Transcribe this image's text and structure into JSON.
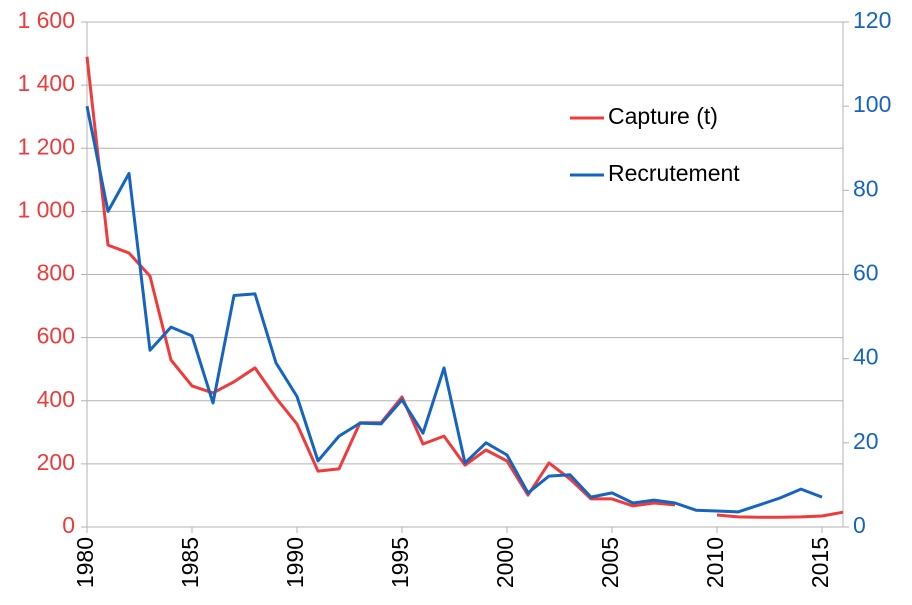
{
  "chart_data": {
    "type": "line",
    "x": [
      1980,
      1981,
      1982,
      1983,
      1984,
      1985,
      1986,
      1987,
      1988,
      1989,
      1990,
      1991,
      1992,
      1993,
      1994,
      1995,
      1996,
      1997,
      1998,
      1999,
      2000,
      2001,
      2002,
      2003,
      2004,
      2005,
      2006,
      2007,
      2008,
      2009,
      2010,
      2011,
      2012,
      2013,
      2014,
      2015,
      2016
    ],
    "series": [
      {
        "name": "Capture (t)",
        "color": "#ee3b3b",
        "axis": "y",
        "values": [
          1490,
          893,
          868,
          795,
          529,
          447,
          425,
          460,
          504,
          409,
          326,
          177,
          184,
          330,
          330,
          412,
          263,
          288,
          196,
          244,
          209,
          101,
          203,
          152,
          89,
          89,
          67,
          76,
          70,
          null,
          38,
          32,
          31,
          31,
          32,
          35,
          47
        ]
      },
      {
        "name": "Recrutement",
        "color": "#1565c0",
        "axis": "y2",
        "values": [
          100,
          75,
          84,
          42,
          47.5,
          45.4,
          29.5,
          55,
          55.4,
          39,
          31,
          15.7,
          21.6,
          24.7,
          24.5,
          30.2,
          22.3,
          37.8,
          15.2,
          20,
          17.1,
          8.1,
          12.1,
          12.4,
          7.1,
          8.1,
          5.7,
          6.4,
          5.7,
          4,
          3.8,
          3.6,
          5.2,
          6.9,
          9,
          7.1,
          null
        ]
      }
    ],
    "xlim": [
      1980,
      2016
    ],
    "xticks": [
      1980,
      1985,
      1990,
      1995,
      2000,
      2005,
      2010,
      2015
    ],
    "ylim": [
      0,
      1600
    ],
    "yticks": [
      0,
      200,
      400,
      600,
      800,
      {
        "value": 1000,
        "label": "1 000"
      },
      {
        "value": 1200,
        "label": "1 200"
      },
      {
        "value": 1400,
        "label": "1 400"
      },
      {
        "value": 1600,
        "label": "1 600"
      }
    ],
    "y2lim": [
      0,
      120
    ],
    "y2ticks": [
      0,
      20,
      40,
      60,
      80,
      100,
      120
    ],
    "grid": true,
    "legend": "upper right"
  }
}
